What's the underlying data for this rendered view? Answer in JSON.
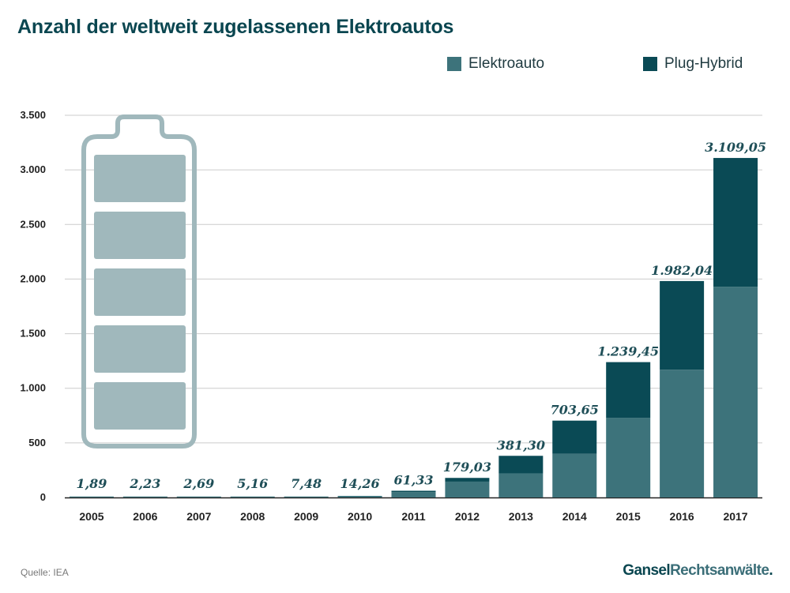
{
  "title": "Anzahl der weltweit zugelassenen Elektroautos",
  "legend": [
    {
      "label": "Elektroauto",
      "color": "#3d737b"
    },
    {
      "label": "Plug-Hybrid",
      "color": "#0a4a55"
    }
  ],
  "source": "Quelle: IEA",
  "logo": {
    "part1": "Gansel",
    "part2": "Rechtsanwälte",
    "dot": "."
  },
  "colors": {
    "bev": "#3d737b",
    "phev": "#0a4a55",
    "grid": "#cccccc",
    "battery": "#a0b8bc",
    "axis": "#222222"
  },
  "icon": "battery-icon",
  "chart_data": {
    "type": "bar",
    "stacked": true,
    "categories": [
      "2005",
      "2006",
      "2007",
      "2008",
      "2009",
      "2010",
      "2011",
      "2012",
      "2013",
      "2014",
      "2015",
      "2016",
      "2017"
    ],
    "series": [
      {
        "name": "Elektroauto",
        "values": [
          1.89,
          2.23,
          2.69,
          5.16,
          7.48,
          14.26,
          50,
          145,
          220,
          400,
          730,
          1170,
          1930
        ]
      },
      {
        "name": "Plug-Hybrid",
        "values": [
          0,
          0,
          0,
          0,
          0,
          0,
          11.33,
          34.03,
          161.3,
          303.65,
          509.45,
          812.04,
          1179.05
        ]
      }
    ],
    "totals": [
      "1,89",
      "2,23",
      "2,69",
      "5,16",
      "7,48",
      "14,26",
      "61,33",
      "179,03",
      "381,30",
      "703,65",
      "1.239,45",
      "1.982,04",
      "3.109,05"
    ],
    "yticks": [
      0,
      500,
      1000,
      1500,
      2000,
      2500,
      3000,
      3500
    ],
    "ytick_labels": [
      "0",
      "500",
      "1.000",
      "1.500",
      "2.000",
      "2.500",
      "3.000",
      "3.500"
    ],
    "ylim": [
      0,
      3500
    ],
    "grid": true,
    "legend_position": "top-right"
  }
}
